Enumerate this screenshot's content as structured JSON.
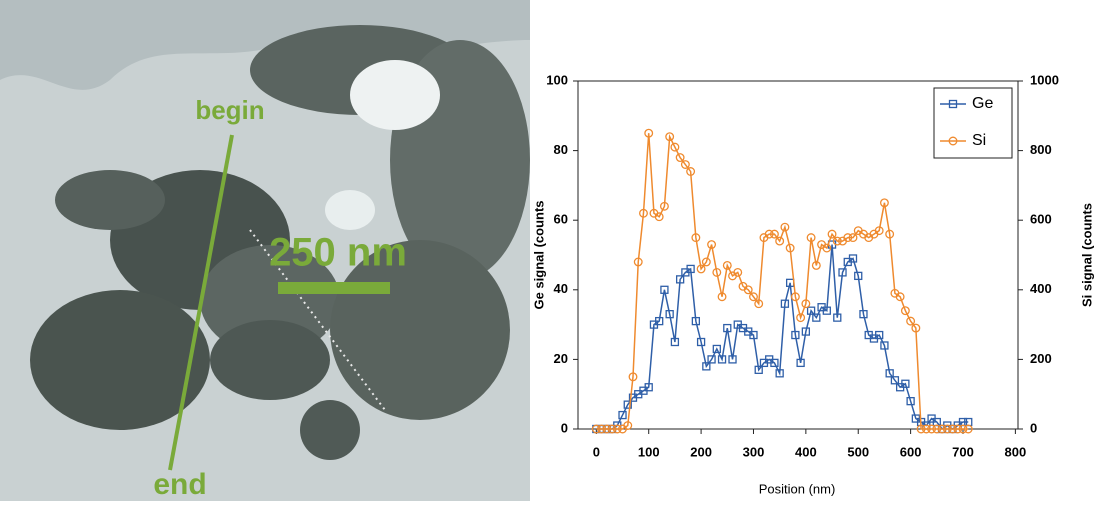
{
  "image": {
    "begin": "begin",
    "end": "end",
    "scale": "250 nm"
  },
  "chart_data": {
    "type": "line",
    "xlabel": "Position (nm)",
    "ylabel": "Ge signal (counts",
    "y2label": "Si signal (counts",
    "x": [
      0,
      10,
      20,
      30,
      40,
      50,
      60,
      70,
      80,
      90,
      100,
      110,
      120,
      130,
      140,
      150,
      160,
      170,
      180,
      190,
      200,
      210,
      220,
      230,
      240,
      250,
      260,
      270,
      280,
      290,
      300,
      310,
      320,
      330,
      340,
      350,
      360,
      370,
      380,
      390,
      400,
      410,
      420,
      430,
      440,
      450,
      460,
      470,
      480,
      490,
      500,
      510,
      520,
      530,
      540,
      550,
      560,
      570,
      580,
      590,
      600,
      610,
      620,
      630,
      640,
      650,
      660,
      670,
      680,
      690,
      700,
      710
    ],
    "series": [
      {
        "name": "Ge",
        "color": "#2f5fa8",
        "marker": "square",
        "values": [
          0,
          0,
          0,
          0,
          1,
          4,
          7,
          9,
          10,
          11,
          12,
          30,
          31,
          40,
          33,
          25,
          43,
          45,
          46,
          31,
          25,
          18,
          20,
          23,
          20,
          29,
          20,
          30,
          29,
          28,
          27,
          17,
          19,
          20,
          19,
          16,
          36,
          42,
          27,
          19,
          28,
          34,
          32,
          35,
          34,
          53,
          32,
          45,
          48,
          49,
          44,
          33,
          27,
          26,
          27,
          24,
          16,
          14,
          12,
          13,
          8,
          3,
          2,
          1,
          3,
          2,
          0,
          1,
          0,
          1,
          2,
          2
        ]
      },
      {
        "name": "Si",
        "color": "#ef8a2e",
        "marker": "circle",
        "axis": "y2",
        "values": [
          0,
          0,
          0,
          0,
          0,
          0,
          10,
          150,
          480,
          620,
          850,
          620,
          610,
          640,
          840,
          810,
          780,
          760,
          740,
          550,
          460,
          480,
          530,
          450,
          380,
          470,
          440,
          450,
          410,
          400,
          380,
          360,
          550,
          560,
          560,
          540,
          580,
          520,
          380,
          320,
          360,
          550,
          470,
          530,
          520,
          560,
          540,
          540,
          550,
          550,
          570,
          560,
          550,
          560,
          570,
          650,
          560,
          390,
          380,
          340,
          310,
          290,
          0,
          0,
          0,
          0,
          0,
          0,
          0,
          0,
          0,
          0
        ]
      }
    ],
    "xlim": [
      -35,
      805
    ],
    "xticks": [
      0,
      100,
      200,
      300,
      400,
      500,
      600,
      700,
      800
    ],
    "ylim": [
      0,
      100
    ],
    "yticks": [
      0,
      20,
      40,
      60,
      80,
      100
    ],
    "y2lim": [
      0,
      1000
    ],
    "y2ticks": [
      0,
      200,
      400,
      600,
      800,
      1000
    ],
    "legend": "upper right"
  }
}
